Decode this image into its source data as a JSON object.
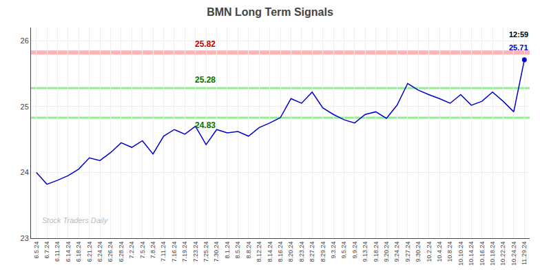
{
  "chart_data": {
    "type": "line",
    "title": "BMN Long Term Signals",
    "categories": [
      "6.5.24",
      "6.7.24",
      "6.11.24",
      "6.14.24",
      "6.18.24",
      "6.21.24",
      "6.24.24",
      "6.26.24",
      "6.28.24",
      "7.2.24",
      "7.5.24",
      "7.8.24",
      "7.11.24",
      "7.16.24",
      "7.19.24",
      "7.23.24",
      "7.25.24",
      "7.30.24",
      "8.1.24",
      "8.5.24",
      "8.8.24",
      "8.12.24",
      "8.14.24",
      "8.16.24",
      "8.20.24",
      "8.23.24",
      "8.27.24",
      "8.29.24",
      "9.3.24",
      "9.5.24",
      "9.9.24",
      "9.13.24",
      "9.18.24",
      "9.20.24",
      "9.24.24",
      "9.27.24",
      "9.30.24",
      "10.2.24",
      "10.4.24",
      "10.8.24",
      "10.10.24",
      "10.14.24",
      "10.16.24",
      "10.18.24",
      "10.22.24",
      "10.24.24",
      "11.29.24"
    ],
    "values": [
      24.0,
      23.82,
      23.88,
      23.95,
      24.05,
      24.22,
      24.18,
      24.3,
      24.45,
      24.38,
      24.48,
      24.28,
      24.55,
      24.65,
      24.58,
      24.7,
      24.42,
      24.65,
      24.6,
      24.62,
      24.55,
      24.68,
      24.75,
      24.83,
      25.12,
      25.05,
      25.22,
      24.98,
      24.88,
      24.8,
      24.75,
      24.88,
      24.92,
      24.82,
      25.02,
      25.35,
      25.25,
      25.18,
      25.12,
      25.05,
      25.18,
      25.02,
      25.08,
      25.22,
      25.08,
      24.92,
      25.71
    ],
    "color": "#0000cc",
    "ylim": [
      23,
      26.2
    ],
    "yticks": [
      23,
      24,
      25,
      26
    ],
    "grid": true,
    "hlines": [
      {
        "value": 25.82,
        "label": "25.82",
        "color": "#ffb3b3",
        "label_color": "#cc0000",
        "label_side": "above"
      },
      {
        "value": 25.28,
        "label": "25.28",
        "color": "#90EE90",
        "label_color": "#007700",
        "label_side": "above"
      },
      {
        "value": 24.83,
        "label": "24.83",
        "color": "#90EE90",
        "label_color": "#007700",
        "label_side": "below"
      }
    ],
    "annotations": [
      {
        "text": "12:59",
        "color": "#000000"
      },
      {
        "text": "25.71",
        "color": "#0000cc"
      }
    ],
    "watermark": {
      "text": "Stock Traders Daily",
      "color": "#bbbbbb"
    }
  }
}
